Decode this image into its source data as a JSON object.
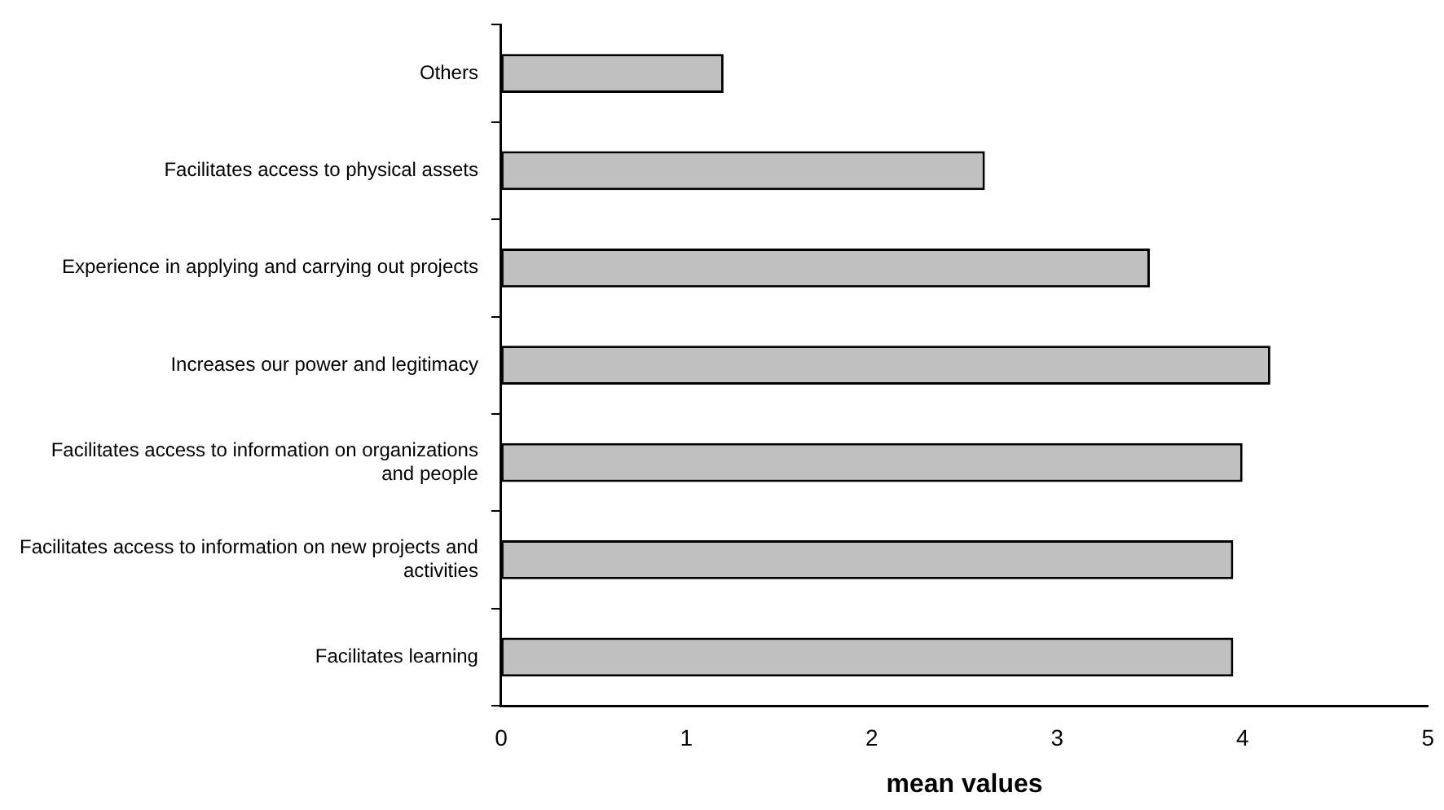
{
  "chart_data": {
    "type": "bar",
    "orientation": "horizontal",
    "xlabel": "mean values",
    "categories": [
      "Others",
      "Facilitates access to physical assets",
      "Experience in applying and carrying out projects",
      "Increases our power and legitimacy",
      "Facilitates access to information on organizations and people",
      "Facilitates access to information on new projects and activities",
      "Facilitates learning"
    ],
    "values": [
      1.2,
      2.61,
      3.5,
      4.15,
      4.0,
      3.95,
      3.95
    ],
    "color": "#c0c0c0",
    "xlim": [
      0,
      5
    ],
    "xticks": [
      0,
      1,
      2,
      3,
      4,
      5
    ],
    "grid": false,
    "legend": false
  }
}
